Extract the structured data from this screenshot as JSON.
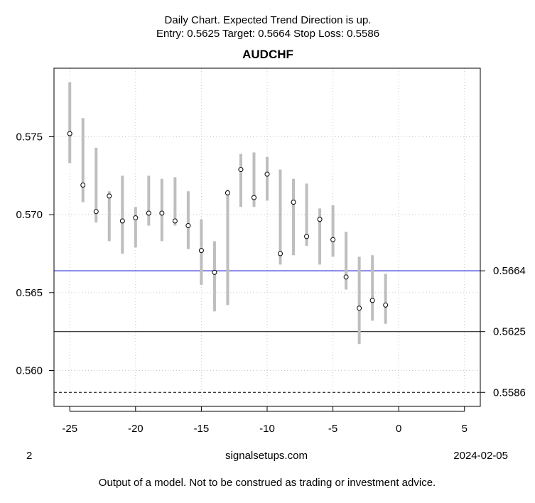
{
  "header": {
    "subtitle_line1": "Daily Chart. Expected Trend Direction is up.",
    "subtitle_line2": "Entry: 0.5625 Target: 0.5664 Stop Loss: 0.5586"
  },
  "footer": {
    "left": "2",
    "center": "signalsetups.com",
    "right": "2024-02-05",
    "disclaimer": "Output of a model. Not to be construed as trading or investment advice."
  },
  "chart_data": {
    "type": "scatter",
    "title": "AUDCHF",
    "xlabel": "",
    "ylabel": "",
    "xlim": [
      -26.2,
      6.2
    ],
    "ylim": [
      0.5577,
      0.5794
    ],
    "grid": true,
    "x_ticks": [
      -25,
      -20,
      -15,
      -10,
      -5,
      0,
      5
    ],
    "y_ticks": [
      0.56,
      0.565,
      0.57,
      0.575
    ],
    "y_tick_labels": [
      "0.560",
      "0.565",
      "0.570",
      "0.575"
    ],
    "points": [
      {
        "x": -25,
        "y": 0.5752,
        "low": 0.5733,
        "high": 0.5785
      },
      {
        "x": -24,
        "y": 0.5719,
        "low": 0.5708,
        "high": 0.5762
      },
      {
        "x": -23,
        "y": 0.5702,
        "low": 0.5695,
        "high": 0.5743
      },
      {
        "x": -22,
        "y": 0.5712,
        "low": 0.5683,
        "high": 0.5715
      },
      {
        "x": -21,
        "y": 0.5696,
        "low": 0.5675,
        "high": 0.5725
      },
      {
        "x": -20,
        "y": 0.5698,
        "low": 0.5679,
        "high": 0.5705
      },
      {
        "x": -19,
        "y": 0.5701,
        "low": 0.5693,
        "high": 0.5725
      },
      {
        "x": -18,
        "y": 0.5701,
        "low": 0.5683,
        "high": 0.5723
      },
      {
        "x": -17,
        "y": 0.5696,
        "low": 0.5693,
        "high": 0.5724
      },
      {
        "x": -16,
        "y": 0.5693,
        "low": 0.5678,
        "high": 0.5715
      },
      {
        "x": -15,
        "y": 0.5677,
        "low": 0.5655,
        "high": 0.5697
      },
      {
        "x": -14,
        "y": 0.5663,
        "low": 0.5638,
        "high": 0.5683
      },
      {
        "x": -13,
        "y": 0.5714,
        "low": 0.5642,
        "high": 0.5716
      },
      {
        "x": -12,
        "y": 0.5729,
        "low": 0.5705,
        "high": 0.5739
      },
      {
        "x": -11,
        "y": 0.5711,
        "low": 0.5705,
        "high": 0.574
      },
      {
        "x": -10,
        "y": 0.5726,
        "low": 0.5709,
        "high": 0.5737
      },
      {
        "x": -9,
        "y": 0.5675,
        "low": 0.5668,
        "high": 0.5729
      },
      {
        "x": -8,
        "y": 0.5708,
        "low": 0.5674,
        "high": 0.5723
      },
      {
        "x": -7,
        "y": 0.5686,
        "low": 0.568,
        "high": 0.572
      },
      {
        "x": -6,
        "y": 0.5697,
        "low": 0.5668,
        "high": 0.5704
      },
      {
        "x": -5,
        "y": 0.5684,
        "low": 0.5673,
        "high": 0.5706
      },
      {
        "x": -4,
        "y": 0.566,
        "low": 0.5652,
        "high": 0.5689
      },
      {
        "x": -3,
        "y": 0.564,
        "low": 0.5617,
        "high": 0.5673
      },
      {
        "x": -2,
        "y": 0.5645,
        "low": 0.5632,
        "high": 0.5674
      },
      {
        "x": -1,
        "y": 0.5642,
        "low": 0.563,
        "high": 0.5662
      }
    ],
    "levels": [
      {
        "value": 0.5664,
        "label": "0.5664",
        "style": "solid",
        "color": "#0000cc"
      },
      {
        "value": 0.5625,
        "label": "0.5625",
        "style": "solid",
        "color": "#000000"
      },
      {
        "value": 0.5586,
        "label": "0.5586",
        "style": "dashed",
        "color": "#000000"
      }
    ],
    "range_bar_color": "#bebebe",
    "grid_color": "#c8c8c8"
  }
}
